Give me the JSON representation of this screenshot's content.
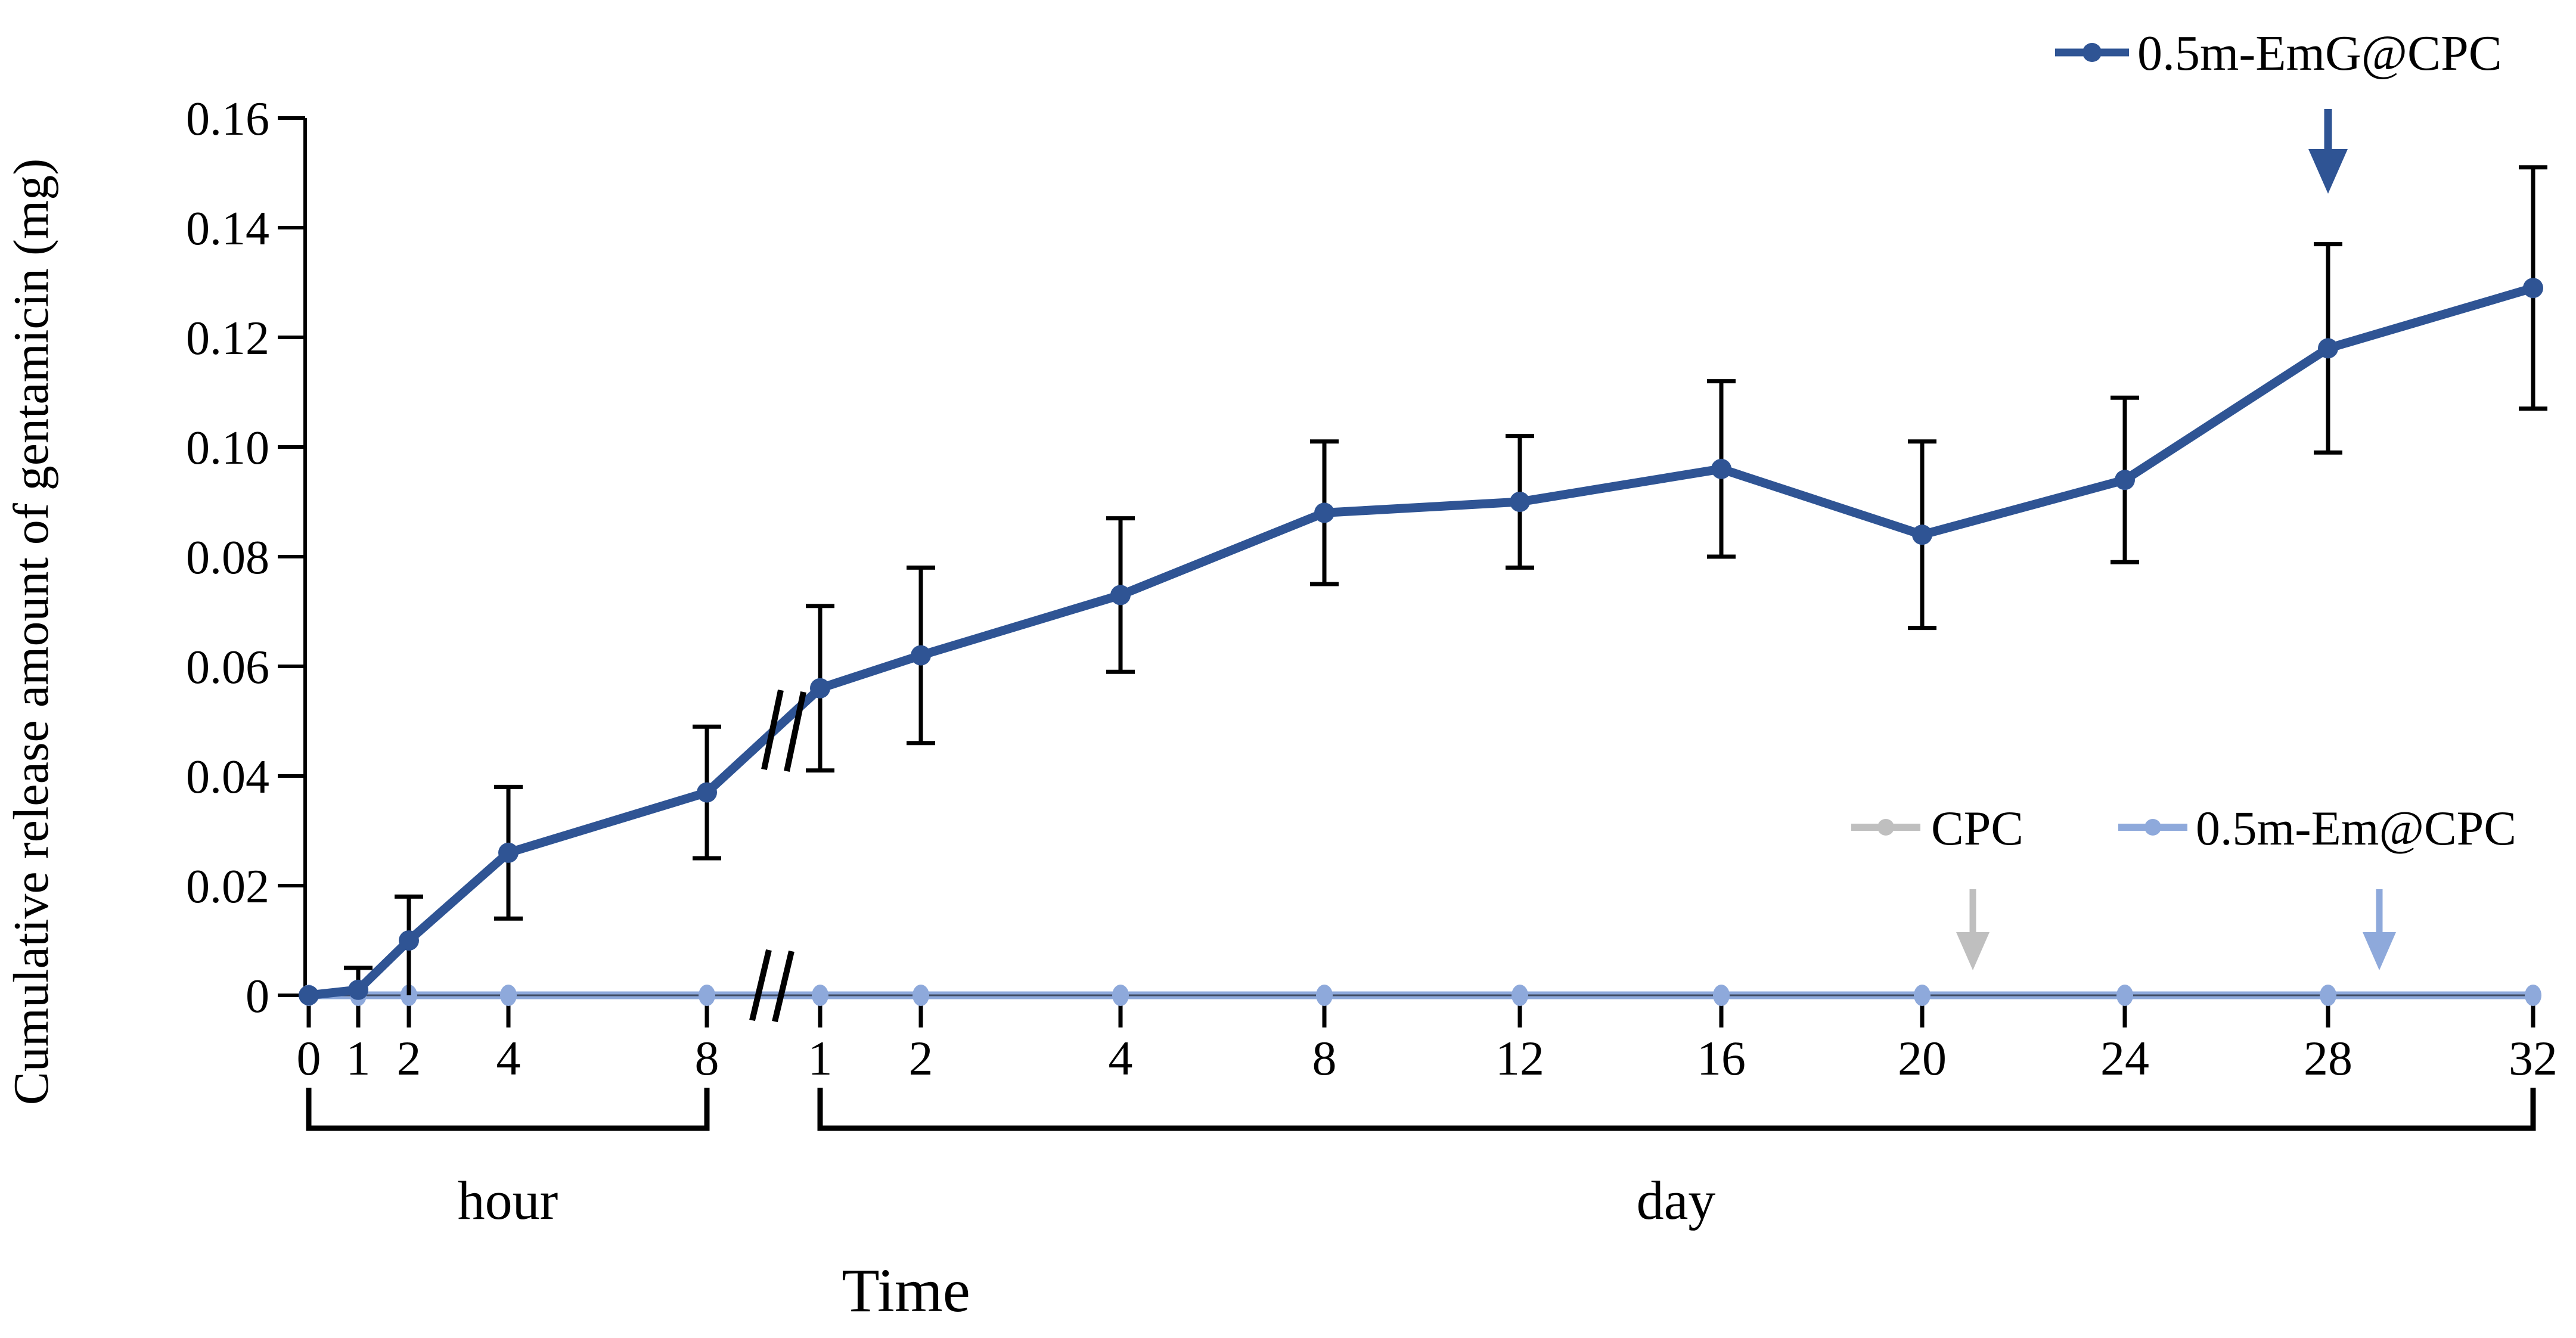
{
  "chart_data": {
    "type": "line",
    "title": "",
    "ylabel": "Cumulative release amount of gentamicin (mg)",
    "xlabel": "Time",
    "ylim": [
      0,
      0.16
    ],
    "ytick_values": [
      0,
      0.02,
      0.04,
      0.06,
      0.08,
      0.1,
      0.12,
      0.14,
      0.16
    ],
    "ytick_labels": [
      "0",
      "0.02",
      "0.04",
      "0.06",
      "0.08",
      "0.10",
      "0.12",
      "0.14",
      "0.16"
    ],
    "grid": false,
    "x_axis": {
      "broken_axis": true,
      "hour": {
        "label": "hour",
        "ticks": [
          0,
          1,
          2,
          4,
          8
        ]
      },
      "day": {
        "label": "day",
        "ticks": [
          1,
          2,
          4,
          8,
          12,
          16,
          20,
          24,
          28,
          32
        ]
      }
    },
    "error_bar_color": "#000000",
    "series": [
      {
        "name": "0.5m-EmG@CPC",
        "color": "#2F5494",
        "marker": "circle",
        "points": [
          {
            "unit": "hour",
            "t": 0,
            "value": 0.0,
            "error": 0.0
          },
          {
            "unit": "hour",
            "t": 1,
            "value": 0.001,
            "error": 0.004
          },
          {
            "unit": "hour",
            "t": 2,
            "value": 0.01,
            "error": 0.008
          },
          {
            "unit": "hour",
            "t": 4,
            "value": 0.026,
            "error": 0.012
          },
          {
            "unit": "hour",
            "t": 8,
            "value": 0.037,
            "error": 0.012
          },
          {
            "unit": "day",
            "t": 1,
            "value": 0.056,
            "error": 0.015
          },
          {
            "unit": "day",
            "t": 2,
            "value": 0.062,
            "error": 0.016
          },
          {
            "unit": "day",
            "t": 4,
            "value": 0.073,
            "error": 0.014
          },
          {
            "unit": "day",
            "t": 8,
            "value": 0.088,
            "error": 0.013
          },
          {
            "unit": "day",
            "t": 12,
            "value": 0.09,
            "error": 0.012
          },
          {
            "unit": "day",
            "t": 16,
            "value": 0.096,
            "error": 0.016
          },
          {
            "unit": "day",
            "t": 20,
            "value": 0.084,
            "error": 0.017
          },
          {
            "unit": "day",
            "t": 24,
            "value": 0.094,
            "error": 0.015
          },
          {
            "unit": "day",
            "t": 28,
            "value": 0.118,
            "error": 0.019
          },
          {
            "unit": "day",
            "t": 32,
            "value": 0.129,
            "error": 0.022
          }
        ]
      },
      {
        "name": "CPC",
        "color": "#BFBFBF",
        "marker": "circle",
        "points": [
          {
            "unit": "hour",
            "t": 0,
            "value": 0,
            "error": 0
          },
          {
            "unit": "hour",
            "t": 1,
            "value": 0,
            "error": 0
          },
          {
            "unit": "hour",
            "t": 2,
            "value": 0,
            "error": 0
          },
          {
            "unit": "hour",
            "t": 4,
            "value": 0,
            "error": 0
          },
          {
            "unit": "hour",
            "t": 8,
            "value": 0,
            "error": 0
          },
          {
            "unit": "day",
            "t": 1,
            "value": 0,
            "error": 0
          },
          {
            "unit": "day",
            "t": 2,
            "value": 0,
            "error": 0
          },
          {
            "unit": "day",
            "t": 4,
            "value": 0,
            "error": 0
          },
          {
            "unit": "day",
            "t": 8,
            "value": 0,
            "error": 0
          },
          {
            "unit": "day",
            "t": 12,
            "value": 0,
            "error": 0
          },
          {
            "unit": "day",
            "t": 16,
            "value": 0,
            "error": 0
          },
          {
            "unit": "day",
            "t": 20,
            "value": 0,
            "error": 0
          },
          {
            "unit": "day",
            "t": 24,
            "value": 0,
            "error": 0
          },
          {
            "unit": "day",
            "t": 28,
            "value": 0,
            "error": 0
          },
          {
            "unit": "day",
            "t": 32,
            "value": 0,
            "error": 0
          }
        ]
      },
      {
        "name": "0.5m-Em@CPC",
        "color": "#8EA9DB",
        "marker": "circle",
        "points": [
          {
            "unit": "hour",
            "t": 0,
            "value": 0,
            "error": 0
          },
          {
            "unit": "hour",
            "t": 1,
            "value": 0,
            "error": 0
          },
          {
            "unit": "hour",
            "t": 2,
            "value": 0,
            "error": 0
          },
          {
            "unit": "hour",
            "t": 4,
            "value": 0,
            "error": 0
          },
          {
            "unit": "hour",
            "t": 8,
            "value": 0,
            "error": 0
          },
          {
            "unit": "day",
            "t": 1,
            "value": 0,
            "error": 0
          },
          {
            "unit": "day",
            "t": 2,
            "value": 0,
            "error": 0
          },
          {
            "unit": "day",
            "t": 4,
            "value": 0,
            "error": 0
          },
          {
            "unit": "day",
            "t": 8,
            "value": 0,
            "error": 0
          },
          {
            "unit": "day",
            "t": 12,
            "value": 0,
            "error": 0
          },
          {
            "unit": "day",
            "t": 16,
            "value": 0,
            "error": 0
          },
          {
            "unit": "day",
            "t": 20,
            "value": 0,
            "error": 0
          },
          {
            "unit": "day",
            "t": 24,
            "value": 0,
            "error": 0
          },
          {
            "unit": "day",
            "t": 28,
            "value": 0,
            "error": 0
          },
          {
            "unit": "day",
            "t": 32,
            "value": 0,
            "error": 0
          }
        ]
      }
    ],
    "annotations": [
      {
        "type": "down-arrow",
        "series": "0.5m-EmG@CPC",
        "color": "#2F5494",
        "points_at_day": 28,
        "row": "top"
      },
      {
        "type": "down-arrow",
        "series": "CPC",
        "color": "#BFBFBF",
        "points_at_day": 21,
        "row": "bottom"
      },
      {
        "type": "down-arrow",
        "series": "0.5m-Em@CPC",
        "color": "#8EA9DB",
        "points_at_day": 29,
        "row": "bottom"
      }
    ],
    "legend": {
      "top_right_entry": "0.5m-EmG@CPC",
      "inner_entries": [
        "CPC",
        "0.5m-Em@CPC"
      ],
      "legend_position": "top-right and inner-right"
    }
  }
}
